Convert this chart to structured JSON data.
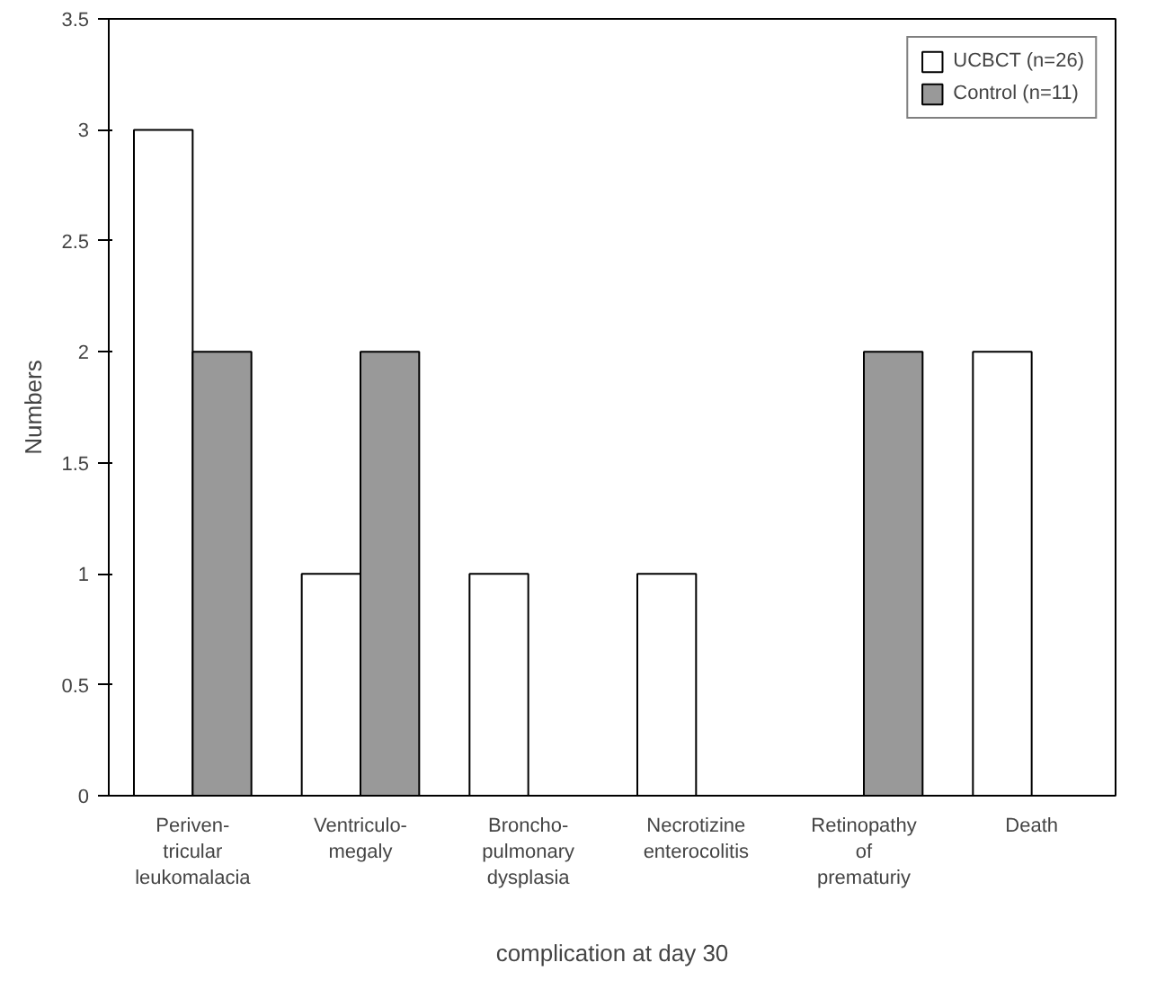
{
  "chart_data": {
    "type": "bar",
    "xlabel": "complication at day 30",
    "ylabel": "Numbers",
    "categories": [
      "Periven-\ntricular\nleukomalacia",
      "Ventriculo-\nmegaly",
      "Broncho-\npulmonary\ndysplasia",
      "Necrotizine\nenterocolitis",
      "Retinopathy\nof\nprematuriy",
      "Death"
    ],
    "series": [
      {
        "name": "UCBCT (n=26)",
        "color": "#ffffff",
        "values": [
          3,
          1,
          1,
          1,
          0,
          2
        ]
      },
      {
        "name": "Control (n=11)",
        "color": "#999999",
        "values": [
          2,
          2,
          0,
          0,
          2,
          0
        ]
      }
    ],
    "ylim": [
      0,
      3.5
    ],
    "yticks": [
      0,
      0.5,
      1,
      1.5,
      2,
      2.5,
      3,
      3.5
    ],
    "grid": false,
    "legend": "top right"
  }
}
